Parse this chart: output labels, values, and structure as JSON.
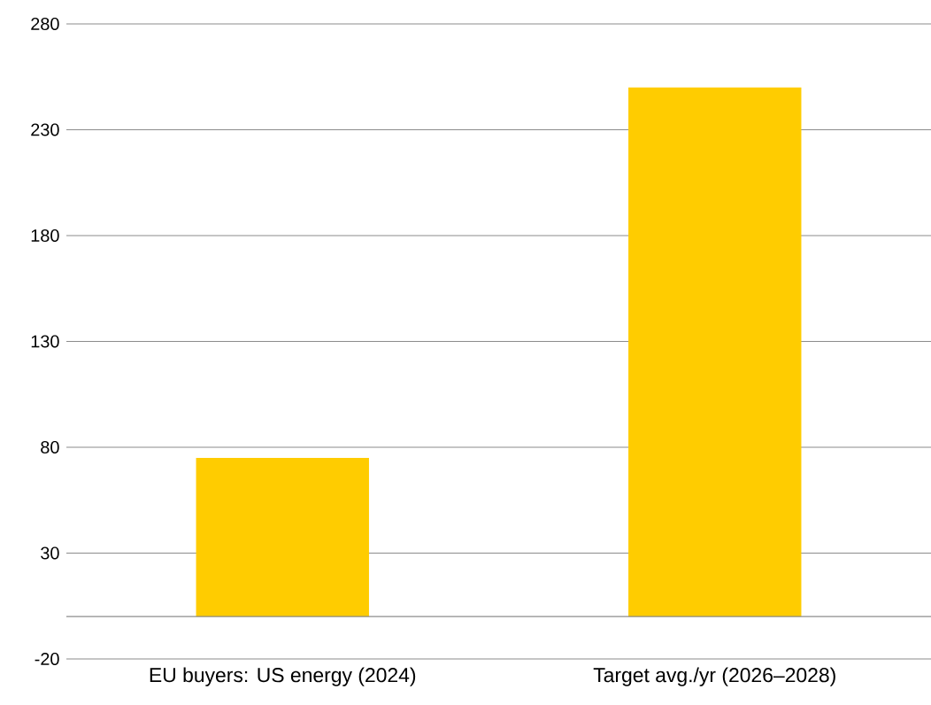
{
  "chart_data": {
    "type": "bar",
    "categories": [
      "EU buyers: US energy (2024)",
      "Target avg./yr (2026–2028)"
    ],
    "values": [
      75,
      250
    ],
    "color": "#ffcc00",
    "ylim": [
      -20,
      280
    ],
    "yticks": [
      -20,
      30,
      80,
      130,
      180,
      230,
      280
    ],
    "grid": "y"
  }
}
